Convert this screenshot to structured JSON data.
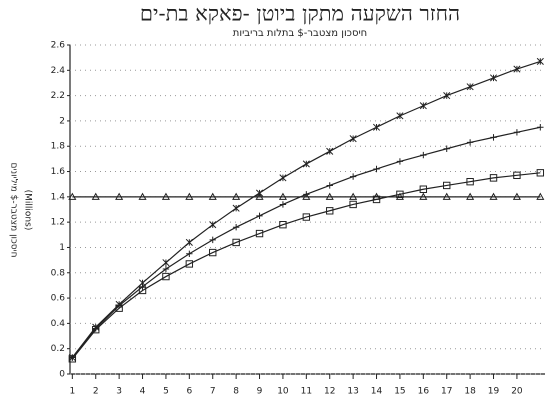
{
  "chart_data": {
    "type": "line",
    "title": "החזר השקעה מתקן ביוטן -פאקא בת-ים",
    "subtitle": "חיסכון מצטבר-$ בתלות בריביות",
    "ylabel": "חיסכון מצטבר-$ מיליונים",
    "ylabel_unit": "(Millions)",
    "x": [
      1,
      2,
      3,
      4,
      5,
      6,
      7,
      8,
      9,
      10,
      11,
      12,
      13,
      14,
      15,
      16,
      17,
      18,
      19,
      20,
      21
    ],
    "xlim": [
      0.9,
      21.2
    ],
    "xticks": [
      1,
      2,
      3,
      4,
      5,
      6,
      7,
      8,
      9,
      10,
      11,
      12,
      13,
      14,
      15,
      16,
      17,
      18,
      19,
      20
    ],
    "ylim": [
      0,
      2.6
    ],
    "yticks": [
      0,
      0.2,
      0.4,
      0.6,
      0.8,
      1,
      1.2,
      1.4,
      1.6,
      1.8,
      2,
      2.2,
      2.4,
      2.6
    ],
    "grid": true,
    "series": [
      {
        "color": "#222222",
        "marker": "x",
        "values": [
          0.13,
          0.37,
          0.55,
          0.72,
          0.88,
          1.04,
          1.18,
          1.31,
          1.43,
          1.55,
          1.66,
          1.76,
          1.86,
          1.95,
          2.04,
          2.12,
          2.2,
          2.27,
          2.34,
          2.41,
          2.47
        ]
      },
      {
        "color": "#222222",
        "marker": "plus",
        "values": [
          0.13,
          0.36,
          0.54,
          0.69,
          0.83,
          0.95,
          1.06,
          1.16,
          1.25,
          1.34,
          1.42,
          1.49,
          1.56,
          1.62,
          1.68,
          1.73,
          1.78,
          1.83,
          1.87,
          1.91,
          1.95
        ]
      },
      {
        "color": "#222222",
        "marker": "square",
        "values": [
          0.12,
          0.35,
          0.52,
          0.66,
          0.77,
          0.87,
          0.96,
          1.04,
          1.11,
          1.18,
          1.24,
          1.29,
          1.34,
          1.38,
          1.42,
          1.46,
          1.49,
          1.52,
          1.55,
          1.57,
          1.59
        ]
      },
      {
        "color": "#222222",
        "marker": "triangle",
        "values": [
          1.4,
          1.4,
          1.4,
          1.4,
          1.4,
          1.4,
          1.4,
          1.4,
          1.4,
          1.4,
          1.4,
          1.4,
          1.4,
          1.4,
          1.4,
          1.4,
          1.4,
          1.4,
          1.4,
          1.4,
          1.4
        ]
      }
    ]
  }
}
